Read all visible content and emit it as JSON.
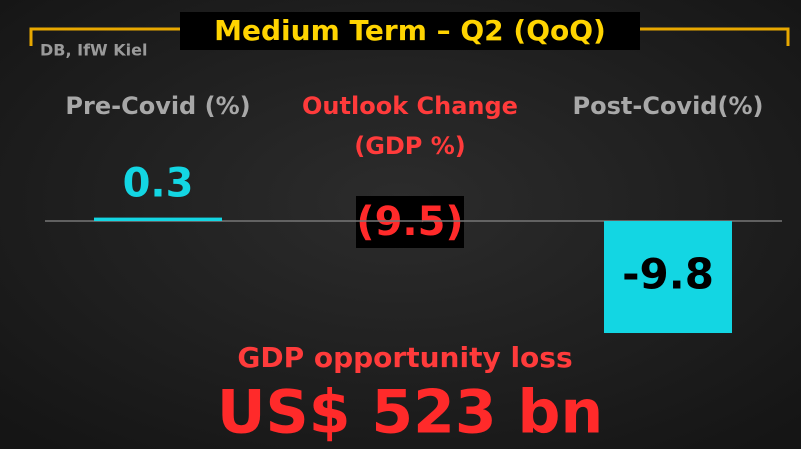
{
  "chart_data": {
    "type": "bar",
    "title": "Medium Term – Q2 (QoQ)",
    "source": "DB, IfW Kiel",
    "categories": [
      "Pre-Covid (%)",
      "Post-Covid(%)"
    ],
    "values": [
      0.3,
      -9.8
    ],
    "color": "#13d6e3",
    "ylim": [
      -10,
      1
    ],
    "outlook_label": [
      "Outlook Change",
      "(GDP %)"
    ],
    "outlook_value": -9.5,
    "outlook_value_label": "(9.5)",
    "loss_label": "GDP opportunity loss",
    "loss_value": 523,
    "loss_value_label": "US$ 523 bn"
  }
}
